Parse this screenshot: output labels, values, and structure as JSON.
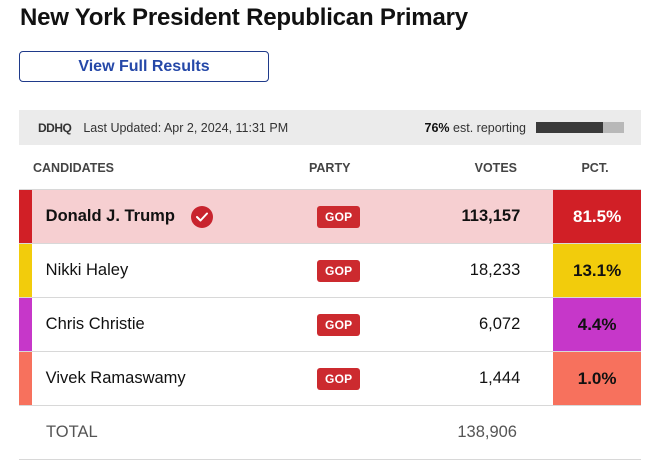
{
  "title": "New York President Republican Primary",
  "view_button": "View Full Results",
  "info": {
    "logo": "DDHQ",
    "last_updated": "Last Updated: Apr 2, 2024, 11:31 PM",
    "reporting_pct": "76%",
    "reporting_label": " est. reporting",
    "reporting_fraction": 0.76
  },
  "headers": {
    "candidates": "CANDIDATES",
    "party": "PARTY",
    "votes": "VOTES",
    "pct": "PCT."
  },
  "candidates": [
    {
      "name": "Donald J. Trump",
      "party": "GOP",
      "votes": "113,157",
      "pct": "81.5%",
      "color": "#d11f26",
      "pct_text_color": "#ffffff",
      "winner": true
    },
    {
      "name": "Nikki Haley",
      "party": "GOP",
      "votes": "18,233",
      "pct": "13.1%",
      "color": "#f2cc0c",
      "pct_text_color": "#111111",
      "winner": false
    },
    {
      "name": "Chris Christie",
      "party": "GOP",
      "votes": "6,072",
      "pct": "4.4%",
      "color": "#c637c9",
      "pct_text_color": "#111111",
      "winner": false
    },
    {
      "name": "Vivek Ramaswamy",
      "party": "GOP",
      "votes": "1,444",
      "pct": "1.0%",
      "color": "#f7715d",
      "pct_text_color": "#111111",
      "winner": false
    }
  ],
  "total": {
    "label": "TOTAL",
    "votes": "138,906"
  }
}
